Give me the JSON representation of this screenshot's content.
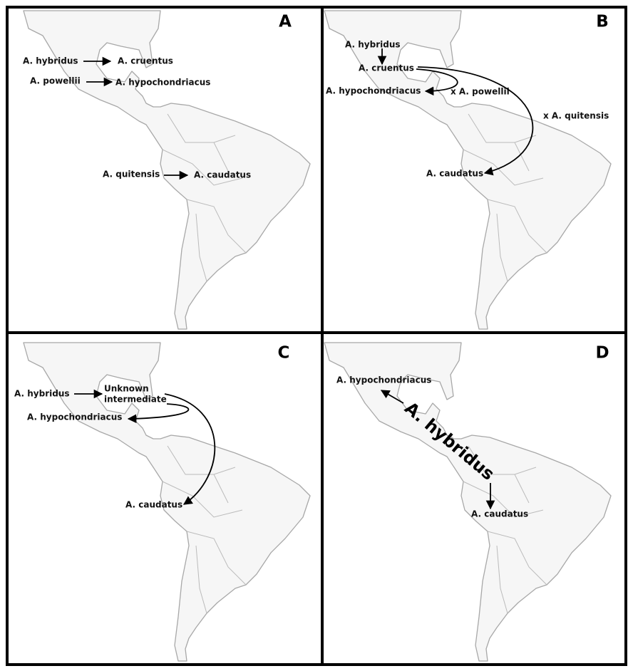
{
  "panels": [
    {
      "letter": "A",
      "labels": [
        "A. hybridus",
        "A. cruentus",
        "A. powellii",
        "A. hypochondriacus",
        "A. quitensis",
        "A. caudatus"
      ]
    },
    {
      "letter": "B",
      "labels": [
        "A. hybridus",
        "A. cruentus",
        "A. hypochondriacus",
        "x A. powellii",
        "x A. quitensis",
        "A. caudatus"
      ]
    },
    {
      "letter": "C",
      "labels": [
        "A. hybridus",
        "Unknown",
        "intermediate",
        "A. hypochondriacus",
        "A. caudatus"
      ]
    },
    {
      "letter": "D",
      "labels": [
        "A. hypochondriacus",
        "A. hybridus",
        "A. caudatus"
      ]
    }
  ]
}
